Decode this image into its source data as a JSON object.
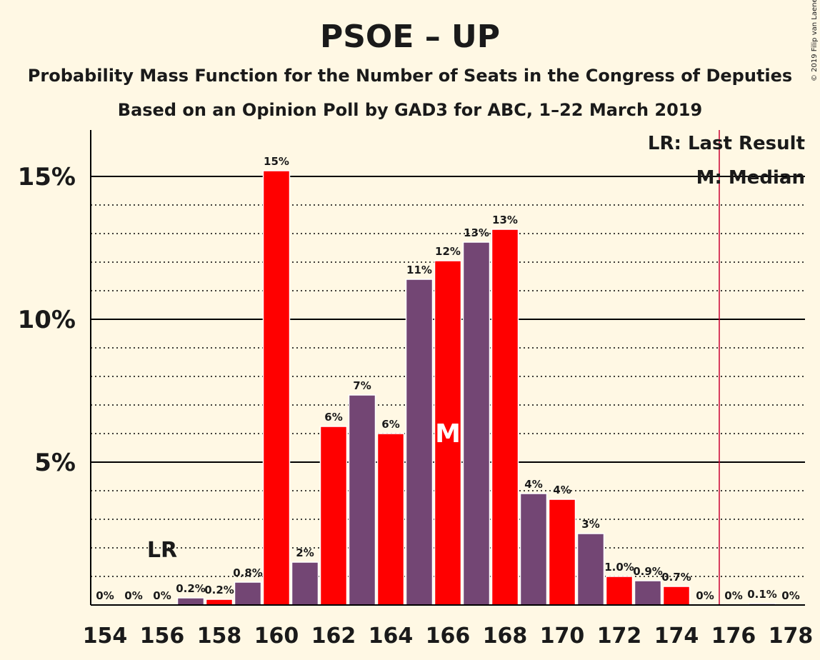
{
  "chart_data": {
    "type": "bar",
    "title": "PSOE – UP",
    "subtitle1": "Probability Mass Function for the Number of Seats in the Congress of Deputies",
    "subtitle2": "Based on an Opinion Poll by GAD3 for ABC, 1–22 March 2019",
    "copyright": "© 2019 Filip van Laenen",
    "legend": [
      "LR: Last Result",
      "M: Median"
    ],
    "ylim": [
      0,
      16.5
    ],
    "y_ticks": [
      5,
      10,
      15
    ],
    "y_tick_labels": [
      "5%",
      "10%",
      "15%"
    ],
    "x_tick_labels": [
      "154",
      "156",
      "158",
      "160",
      "162",
      "164",
      "166",
      "168",
      "170",
      "172",
      "174",
      "176",
      "178"
    ],
    "x": [
      154,
      155,
      156,
      157,
      158,
      159,
      160,
      161,
      162,
      163,
      164,
      165,
      166,
      167,
      168,
      169,
      170,
      171,
      172,
      173,
      174,
      175,
      176,
      177,
      178
    ],
    "values": [
      0,
      0,
      0,
      0.25,
      0.2,
      0.8,
      15.2,
      1.5,
      6.25,
      7.35,
      6.0,
      11.4,
      12.05,
      12.7,
      13.15,
      3.9,
      3.7,
      2.5,
      1.0,
      0.85,
      0.65,
      0,
      0,
      0.05,
      0
    ],
    "labels": [
      "0%",
      "0%",
      "0%",
      "0.2%",
      "0.2%",
      "0.8%",
      "15%",
      "2%",
      "6%",
      "7%",
      "6%",
      "11%",
      "12%",
      "13%",
      "13%",
      "4%",
      "4%",
      "3%",
      "1.0%",
      "0.9%",
      "0.7%",
      "0%",
      "0%",
      "0.1%",
      "0%"
    ],
    "last_result_seat": 156,
    "last_result_label": "LR",
    "median_seat": 166,
    "median_label": "M",
    "majority_line_seat": 175.5,
    "colors": {
      "red": "#ff0000",
      "purple": "#734674",
      "majority_line": "#cc0033",
      "background": "#fff8e4"
    }
  }
}
